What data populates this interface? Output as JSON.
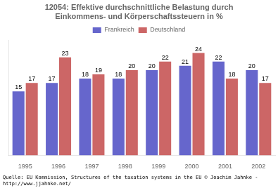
{
  "chart_data": {
    "type": "bar",
    "title": "12054: Effektive durchschnittliche Belastung durch",
    "subtitle": "Einkommens- und Körperschaftssteuern in %",
    "annotations": [
      "Quelle: EU Kommission, Structures of the taxation systems in the EU © Joachim Jahnke -",
      "http://www.jjahnke.net/"
    ],
    "categories": [
      "1995",
      "1996",
      "1997",
      "1998",
      "1999",
      "2000",
      "2001",
      "2002"
    ],
    "series": [
      {
        "name": "Frankreich",
        "color": "#6666cc",
        "values": [
          15,
          17,
          18,
          18,
          20,
          21,
          22,
          20
        ]
      },
      {
        "name": "Deutschland",
        "color": "#cc6666",
        "values": [
          17,
          23,
          19,
          20,
          22,
          24,
          18,
          17
        ]
      }
    ],
    "ylim": [
      0,
      27
    ],
    "grid": false,
    "legend": "top",
    "data_labels": true,
    "tick_labels": "x"
  }
}
